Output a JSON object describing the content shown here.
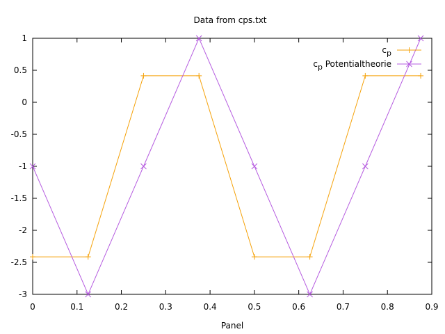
{
  "chart_data": {
    "type": "line",
    "title": "Data from cps.txt",
    "xlabel": "Panel",
    "ylabel": "",
    "xlim": [
      0,
      0.9
    ],
    "ylim": [
      -3,
      1
    ],
    "xticks": [
      "0",
      "0.1",
      "0.2",
      "0.3",
      "0.4",
      "0.5",
      "0.6",
      "0.7",
      "0.8",
      "0.9"
    ],
    "yticks": [
      "1",
      "0.5",
      "0",
      "-0.5",
      "-1",
      "-1.5",
      "-2",
      "-2.5",
      "-3"
    ],
    "grid": false,
    "legend_position": "top-right",
    "series": [
      {
        "name": "cp",
        "name_base": "c",
        "name_sub": "p",
        "name_suffix": "",
        "color": "#f5a20a",
        "marker": "plus",
        "x": [
          0,
          0.125,
          0.25,
          0.375,
          0.5,
          0.625,
          0.75,
          0.875
        ],
        "y": [
          -2.414,
          -2.414,
          0.414,
          0.414,
          -2.414,
          -2.414,
          0.414,
          0.414
        ]
      },
      {
        "name": "cp Potentialtheorie",
        "name_base": "c",
        "name_sub": "p",
        "name_suffix": " Potentialtheorie",
        "color": "#b65de0",
        "marker": "cross",
        "x": [
          0,
          0.125,
          0.25,
          0.375,
          0.5,
          0.625,
          0.75,
          0.875
        ],
        "y": [
          -1,
          -3,
          -1,
          1,
          -1,
          -3,
          -1,
          1
        ]
      }
    ]
  }
}
